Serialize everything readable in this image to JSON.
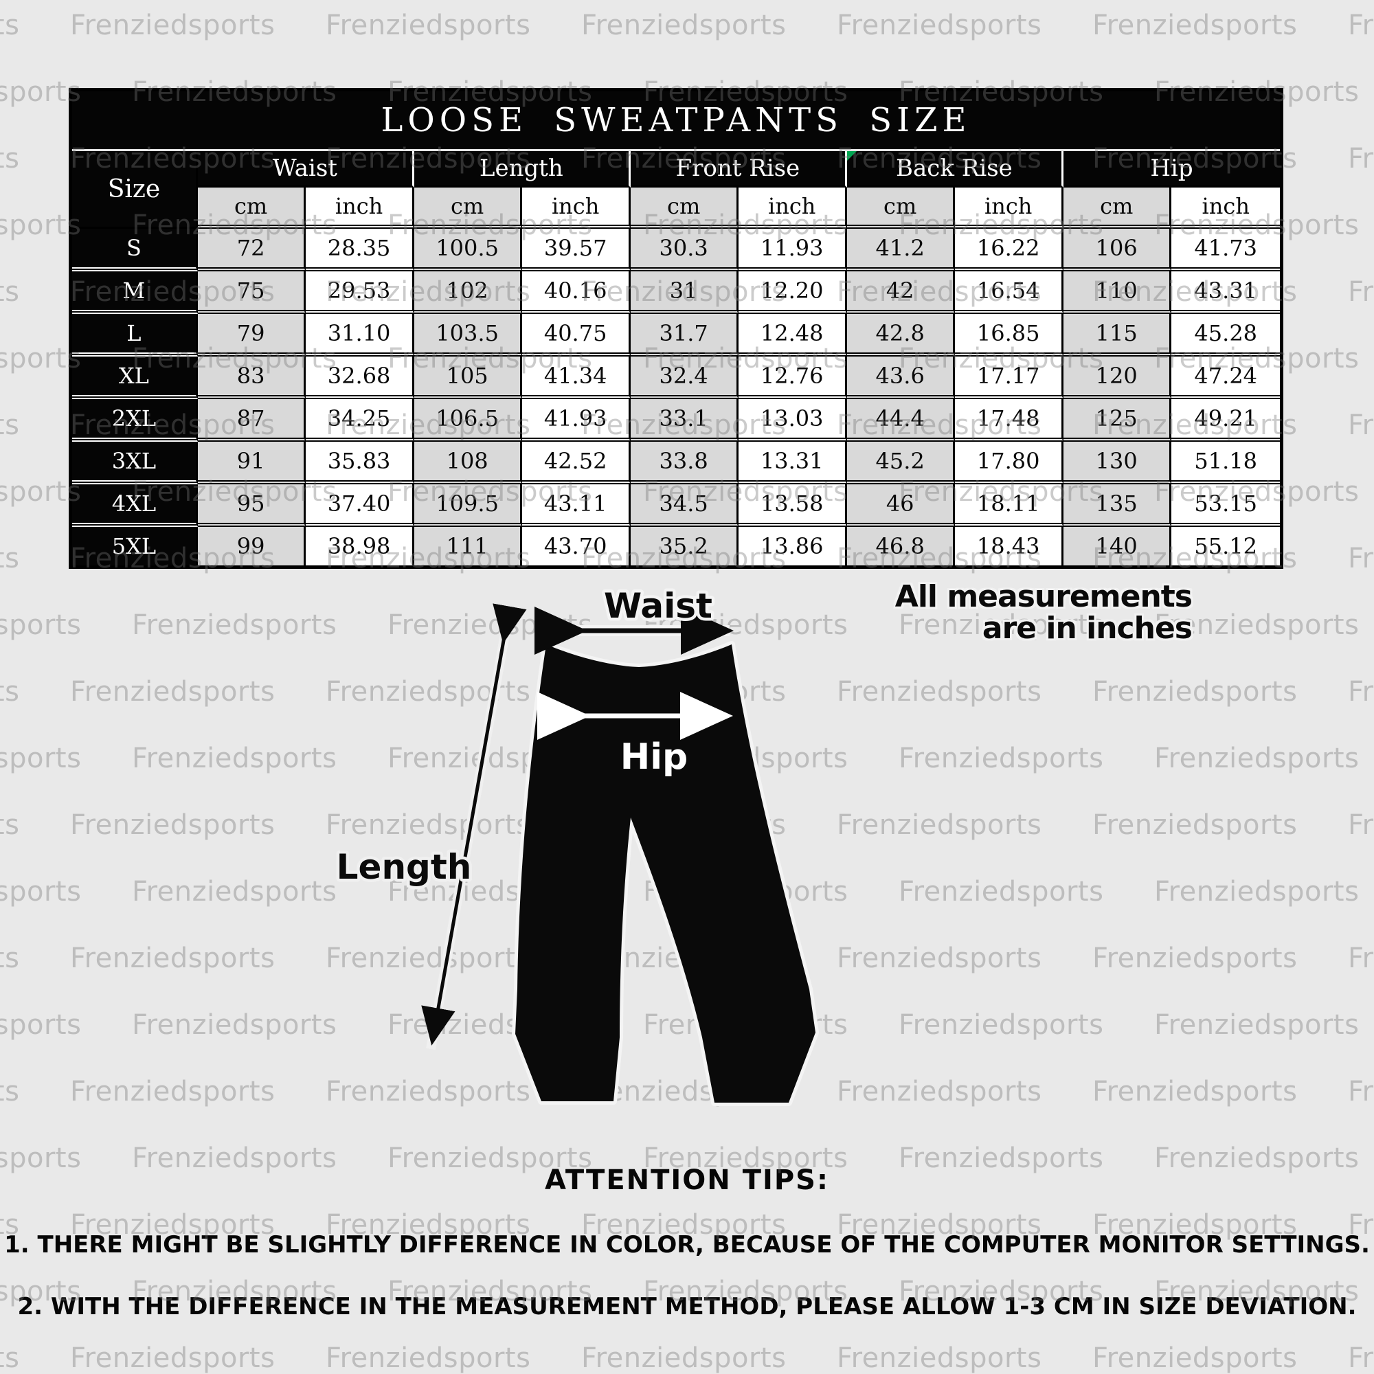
{
  "watermark": {
    "text": "Frenziedsports"
  },
  "size_chart": {
    "title": "LOOSE SWEATPANTS SIZE",
    "corner_header": "Size",
    "groups": [
      "Waist",
      "Length",
      "Front Rise",
      "Back Rise",
      "Hip"
    ],
    "units": [
      "cm",
      "inch"
    ],
    "rows": [
      {
        "size": "S",
        "values": [
          "72",
          "28.35",
          "100.5",
          "39.57",
          "30.3",
          "11.93",
          "41.2",
          "16.22",
          "106",
          "41.73"
        ]
      },
      {
        "size": "M",
        "values": [
          "75",
          "29.53",
          "102",
          "40.16",
          "31",
          "12.20",
          "42",
          "16.54",
          "110",
          "43.31"
        ]
      },
      {
        "size": "L",
        "values": [
          "79",
          "31.10",
          "103.5",
          "40.75",
          "31.7",
          "12.48",
          "42.8",
          "16.85",
          "115",
          "45.28"
        ]
      },
      {
        "size": "XL",
        "values": [
          "83",
          "32.68",
          "105",
          "41.34",
          "32.4",
          "12.76",
          "43.6",
          "17.17",
          "120",
          "47.24"
        ]
      },
      {
        "size": "2XL",
        "values": [
          "87",
          "34.25",
          "106.5",
          "41.93",
          "33.1",
          "13.03",
          "44.4",
          "17.48",
          "125",
          "49.21"
        ]
      },
      {
        "size": "3XL",
        "values": [
          "91",
          "35.83",
          "108",
          "42.52",
          "33.8",
          "13.31",
          "45.2",
          "17.80",
          "130",
          "51.18"
        ]
      },
      {
        "size": "4XL",
        "values": [
          "95",
          "37.40",
          "109.5",
          "43.11",
          "34.5",
          "13.58",
          "46",
          "18.11",
          "135",
          "53.15"
        ]
      },
      {
        "size": "5XL",
        "values": [
          "99",
          "38.98",
          "111",
          "43.70",
          "35.2",
          "13.86",
          "46.8",
          "18.43",
          "140",
          "55.12"
        ]
      }
    ]
  },
  "diagram": {
    "waist_label": "Waist",
    "hip_label": "Hip",
    "length_label": "Length",
    "note_line1": "All measurements",
    "note_line2": "are in inches"
  },
  "tips": {
    "heading": "ATTENTION TIPS:",
    "items": [
      "1. THERE MIGHT BE SLIGHTLY DIFFERENCE IN COLOR, BECAUSE OF THE COMPUTER MONITOR SETTINGS.",
      "2. WITH THE DIFFERENCE IN THE MEASUREMENT METHOD, PLEASE ALLOW 1-3 CM IN SIZE DEVIATION."
    ]
  },
  "colors": {
    "page_background": "#e9e9e9",
    "table_header_bg": "#050505",
    "table_header_text": "#ffffff",
    "cm_column_bg": "#d9d9d9",
    "inch_column_bg": "#ffffff",
    "watermark_gray": "#bdbdbd",
    "error_marker_green": "#00a651",
    "silhouette_black": "#0a0a0a"
  }
}
